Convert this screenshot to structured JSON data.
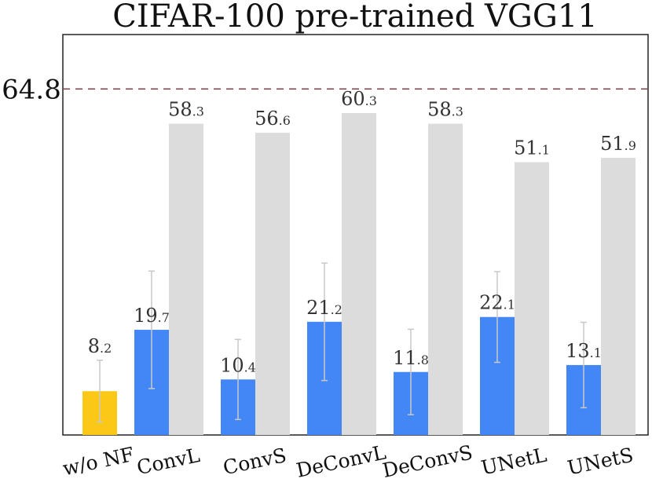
{
  "chart_data": {
    "type": "bar",
    "title": "CIFAR-100 pre-trained VGG11",
    "xlabel": "",
    "ylabel": "",
    "ylim": [
      0,
      75
    ],
    "reference_line": {
      "value": 64.8,
      "label": "64.8",
      "style": "dashed",
      "color": "#7a4a55"
    },
    "baseline": {
      "category": "w/o NF",
      "value": 8.2,
      "label_main": "8",
      "label_dec": ".2",
      "error": 5.8,
      "color": "#fcc818"
    },
    "categories": [
      "ConvL",
      "ConvS",
      "DeConvL",
      "DeConvS",
      "UNetL",
      "UNetS"
    ],
    "series": [
      {
        "name": "blue",
        "color": "#4287f5",
        "values": [
          19.7,
          10.4,
          21.2,
          11.8,
          22.1,
          13.1
        ],
        "errors": [
          11.0,
          7.5,
          11.0,
          8.0,
          8.5,
          8.0
        ],
        "labels_main": [
          "19",
          "10",
          "21",
          "11",
          "22",
          "13"
        ],
        "labels_dec": [
          ".7",
          ".4",
          ".2",
          ".8",
          ".1",
          ".1"
        ]
      },
      {
        "name": "gray",
        "color": "#dcdcdc",
        "values": [
          58.3,
          56.6,
          60.3,
          58.3,
          51.1,
          51.9
        ],
        "labels_main": [
          "58",
          "56",
          "60",
          "58",
          "51",
          "51"
        ],
        "labels_dec": [
          ".3",
          ".6",
          ".3",
          ".3",
          ".1",
          ".9"
        ]
      }
    ],
    "x_tick_labels": [
      "w/o NF",
      "ConvL",
      "ConvS",
      "DeConvL",
      "DeConvS",
      "UNetL",
      "UNetS"
    ],
    "error_bar_color": "#c8c8c8",
    "grid": false
  }
}
